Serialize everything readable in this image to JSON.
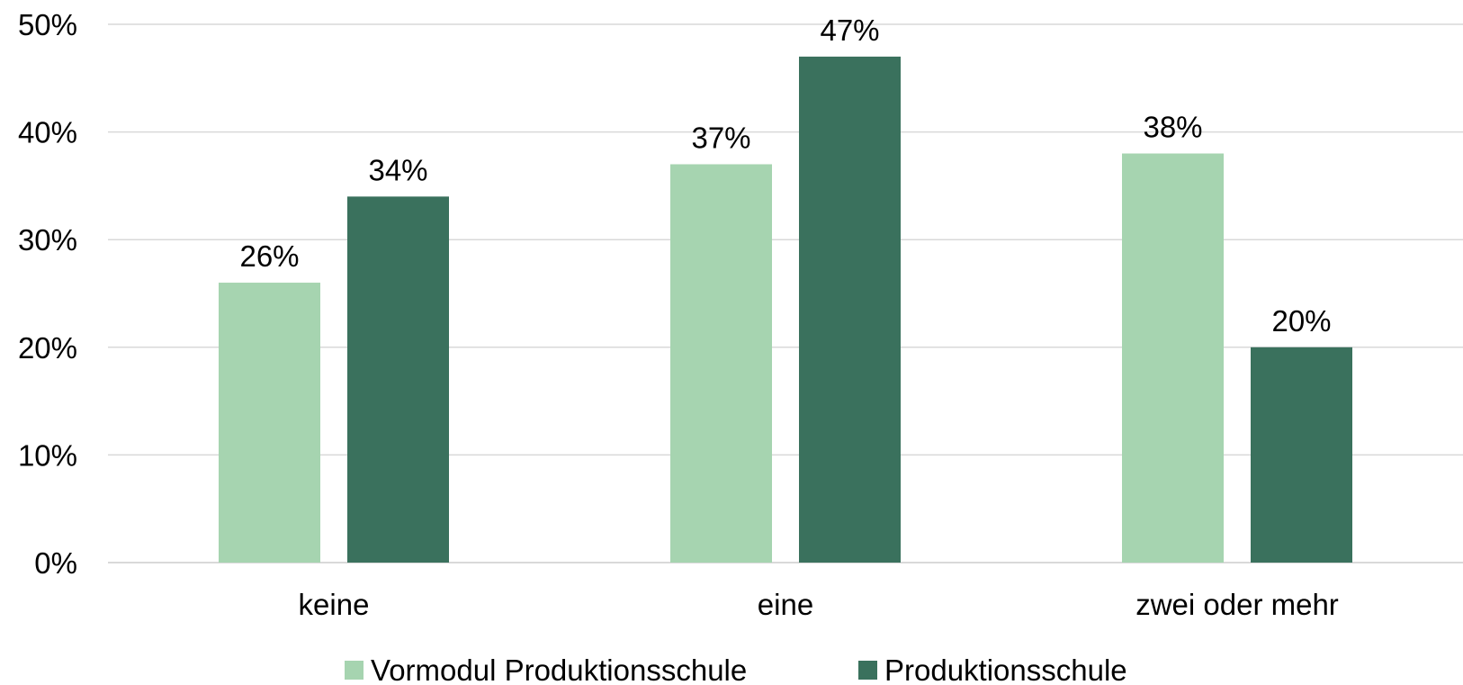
{
  "chart_data": {
    "type": "bar",
    "categories": [
      "keine",
      "eine",
      "zwei oder mehr"
    ],
    "series": [
      {
        "name": "Vormodul Produktionsschule",
        "values": [
          26,
          37,
          38
        ],
        "labels": [
          "26%",
          "37%",
          "38%"
        ],
        "color": "#a6d4b0"
      },
      {
        "name": "Produktionsschule",
        "values": [
          34,
          47,
          20
        ],
        "labels": [
          "34%",
          "47%",
          "20%"
        ],
        "color": "#3a715d"
      }
    ],
    "y_ticks": [
      0,
      10,
      20,
      30,
      40,
      50
    ],
    "y_tick_labels": [
      "0%",
      "10%",
      "20%",
      "30%",
      "40%",
      "50%"
    ],
    "ylim": [
      0,
      50
    ],
    "grid": true,
    "legend_position": "bottom"
  }
}
